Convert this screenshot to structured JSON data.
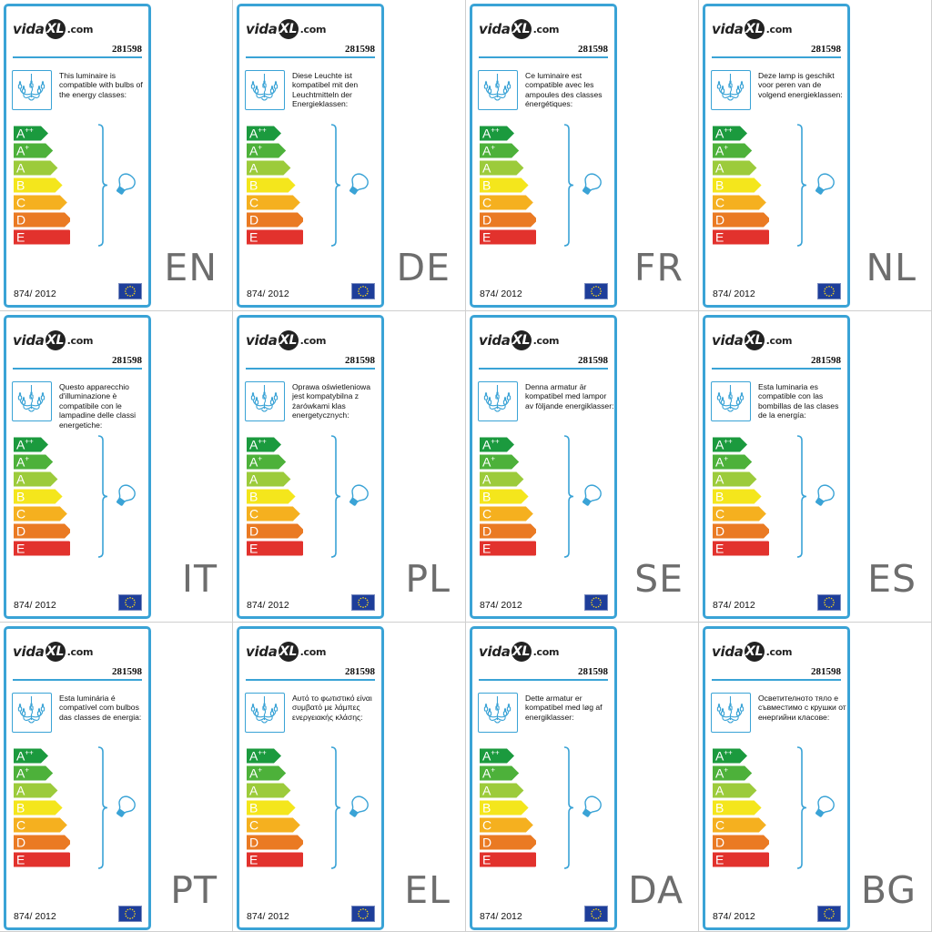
{
  "brand": {
    "name_prefix": "vida",
    "name_mark": "XL",
    "name_suffix": ".com"
  },
  "product_number": "281598",
  "regulation": "874/ 2012",
  "energy_classes": [
    "A++",
    "A+",
    "A",
    "B",
    "C",
    "D",
    "E"
  ],
  "class_colors": [
    "#1b9a3e",
    "#4db13a",
    "#9ccb3b",
    "#f4e61c",
    "#f5b01f",
    "#ea7a23",
    "#e2322d"
  ],
  "accent_color": "#3aa3d6",
  "icons": {
    "lamp": "chandelier-icon",
    "bulb": "bulb-icon",
    "flag": "eu-flag-icon"
  },
  "labels": [
    {
      "lang": "EN",
      "text": "This luminaire is compatible with bulbs of the energy classes:"
    },
    {
      "lang": "DE",
      "text": "Diese Leuchte ist kompatibel mit den Leuchtmitteln der Energieklassen:"
    },
    {
      "lang": "FR",
      "text": "Ce luminaire est compatible avec les ampoules des classes énergétiques:"
    },
    {
      "lang": "NL",
      "text": "Deze lamp is geschikt voor peren van de volgend energieklassen:"
    },
    {
      "lang": "IT",
      "text": "Questo apparecchio d'illuminazione è compatibile con le lampadine delle classi energetiche:"
    },
    {
      "lang": "PL",
      "text": "Oprawa oświetleniowa jest kompatybilna z żarówkami klas energetycznych:"
    },
    {
      "lang": "SE",
      "text": "Denna armatur är kompatibel med lampor av följande energiklasser:"
    },
    {
      "lang": "ES",
      "text": "Esta luminaria es compatible con las bombillas de las clases de la energía:"
    },
    {
      "lang": "PT",
      "text": "Esta luminária é compatível com bulbos das classes de energia:"
    },
    {
      "lang": "EL",
      "text": "Αυτό το φωτιστικό είναι συμβατό με λάμπες ενεργειακής κλάσης:"
    },
    {
      "lang": "DA",
      "text": "Dette armatur er kompatibel med løg af energiklasser:"
    },
    {
      "lang": "BG",
      "text": "Осветителното тяло е съвместимо с крушки от енергийни класове:"
    }
  ]
}
